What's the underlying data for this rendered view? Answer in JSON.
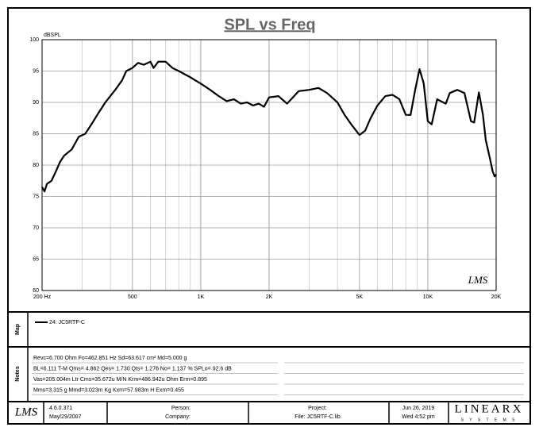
{
  "chart_data": {
    "type": "line",
    "title": "SPL vs Freq",
    "y_label": "dBSPL",
    "corner_logo": "LMS",
    "x": [
      200,
      205,
      210,
      220,
      230,
      240,
      250,
      270,
      290,
      310,
      330,
      350,
      380,
      420,
      450,
      470,
      500,
      530,
      560,
      600,
      620,
      650,
      700,
      750,
      800,
      900,
      1000,
      1100,
      1200,
      1300,
      1400,
      1500,
      1600,
      1700,
      1800,
      1900,
      2000,
      2200,
      2400,
      2500,
      2700,
      3000,
      3300,
      3600,
      4000,
      4300,
      4600,
      5000,
      5300,
      5600,
      6000,
      6500,
      7000,
      7500,
      8000,
      8400,
      8800,
      9200,
      9600,
      10000,
      10400,
      11000,
      12000,
      12500,
      13500,
      14500,
      15500,
      16000,
      16800,
      17500,
      18000,
      18800,
      19300,
      19700,
      20000
    ],
    "series": [
      {
        "name": "24: JC5RTF-C",
        "color": "#000000",
        "values": [
          76.5,
          75.8,
          77,
          77.5,
          79,
          80.5,
          81.5,
          82.5,
          84.5,
          85,
          86.5,
          88,
          90,
          92,
          93.5,
          95,
          95.5,
          96.3,
          96,
          96.5,
          95.5,
          96.5,
          96.5,
          95.5,
          95,
          94,
          93,
          92,
          91,
          90.2,
          90.5,
          89.8,
          90,
          89.5,
          89.8,
          89.3,
          90.8,
          91,
          89.8,
          90.5,
          91.8,
          92,
          92.3,
          91.5,
          90,
          88,
          86.5,
          84.8,
          85.5,
          87.5,
          89.5,
          91,
          91.2,
          90.5,
          88,
          88,
          92,
          95.3,
          93,
          87,
          86.5,
          90.5,
          89.8,
          91.5,
          92,
          91.5,
          87,
          86.8,
          91.6,
          88,
          84,
          81,
          79,
          78.2,
          78.5
        ]
      }
    ],
    "xlim": [
      200,
      20000
    ],
    "log_x": true,
    "xticks": [
      {
        "value": 200,
        "label": "200 Hz"
      },
      500,
      {
        "value": 1000,
        "label": "1K"
      },
      {
        "value": 2000,
        "label": "2K"
      },
      {
        "value": 5000,
        "label": "5K"
      },
      {
        "value": 10000,
        "label": "10K"
      },
      {
        "value": 20000,
        "label": "20K"
      }
    ],
    "ylim": [
      60,
      100
    ],
    "yticks": [
      60,
      65,
      70,
      75,
      80,
      85,
      90,
      95,
      100
    ],
    "grid": true
  },
  "map": {
    "label": "Map"
  },
  "notes": {
    "label": "Notes",
    "lines": [
      "Revc=6.700 Ohm  Fo=462.851 Hz  Sd=63.617 cm²  Md=5.000 g",
      "BL=6.111 T-M  Qms= 4.862  Qes= 1.730  Qts= 1.276  No= 1.137 %  SPLo= 92.6 dB",
      "Vas=205.004m Ltr  Cms=35.672u M/N  Krm=486.942u Ohm  Erm=0.895",
      "Mms=3.315 g  Mmd=3.023m Kg  Kxm=57.983m H  Exm=0.455"
    ]
  },
  "footer": {
    "logo": "LMS",
    "version": "4.6.0.371",
    "version_date": "May/29/2007",
    "person": "Person:",
    "company": "Company:",
    "project": "Project:",
    "file": "File: JC5RTF-C.lib",
    "date": "Jun 26, 2019",
    "time": "Wed  4:52 pm",
    "brand": "LINEARX",
    "brand_sub": "S Y S T E M S"
  }
}
